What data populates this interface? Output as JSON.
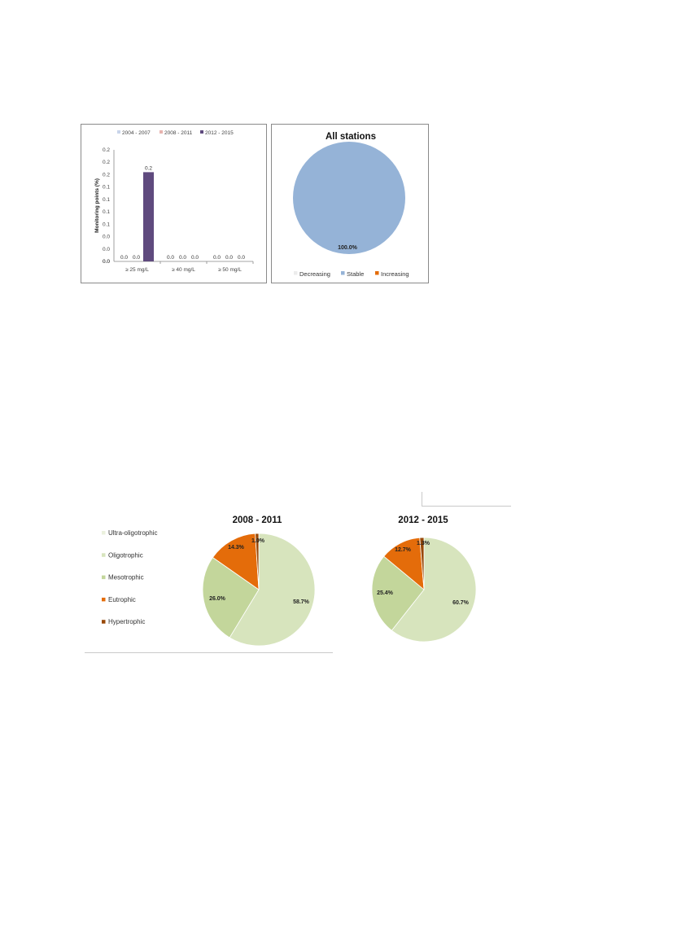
{
  "colors": {
    "series_2004_2007": "#c9d5ea",
    "series_2008_2011": "#e7b4b0",
    "series_2012_2015": "#5f4a7e",
    "decreasing": "#ececec",
    "stable": "#95b3d7",
    "increasing": "#e46c0a",
    "ultra_oligotrophic": "#ebf1de",
    "oligotrophic": "#d7e4bd",
    "mesotrophic": "#c3d69b",
    "eutrophic": "#e46c0a",
    "hypertrophic": "#984807"
  },
  "chart_data": [
    {
      "type": "bar",
      "title": "",
      "xlabel": "",
      "ylabel": "Monitoring points (%)",
      "ylim": [
        0,
        0.25
      ],
      "ytick_labels": [
        "0.2",
        "0.2",
        "0.2",
        "0.1",
        "0.1",
        "0.1",
        "0.1",
        "0.0",
        "0.0",
        "0.0"
      ],
      "categories": [
        "≥ 25 mg/L",
        "≥ 40 mg/L",
        "≥ 50 mg/L"
      ],
      "series": [
        {
          "name": "2004 - 2007",
          "values": [
            0.0,
            0.0,
            0.0
          ],
          "labels": [
            "0.0",
            "0.0",
            "0.0"
          ],
          "color_key": "series_2004_2007"
        },
        {
          "name": "2008 - 2011",
          "values": [
            0.0,
            0.0,
            0.0
          ],
          "labels": [
            "0.0",
            "0.0",
            "0.0"
          ],
          "color_key": "series_2008_2011"
        },
        {
          "name": "2012 - 2015",
          "values": [
            0.2,
            0.0,
            0.0
          ],
          "labels": [
            "0.2",
            "0.0",
            "0.0"
          ],
          "color_key": "series_2012_2015"
        }
      ],
      "legend": "top",
      "grid": false
    },
    {
      "type": "pie",
      "title": "All stations",
      "slices": [
        {
          "name": "Decreasing",
          "value": 0.0,
          "color_key": "decreasing",
          "label": ""
        },
        {
          "name": "Stable",
          "value": 100.0,
          "color_key": "stable",
          "label": "100.0%"
        },
        {
          "name": "Increasing",
          "value": 0.0,
          "color_key": "increasing",
          "label": ""
        }
      ],
      "legend": "bottom"
    },
    {
      "type": "pie",
      "title": "2008 - 2011",
      "slices": [
        {
          "name": "Ultra-oligotrophic",
          "value": 0.0,
          "color_key": "ultra_oligotrophic",
          "label": ""
        },
        {
          "name": "Oligotrophic",
          "value": 58.7,
          "color_key": "oligotrophic",
          "label": "58.7%"
        },
        {
          "name": "Mesotrophic",
          "value": 26.0,
          "color_key": "mesotrophic",
          "label": "26.0%"
        },
        {
          "name": "Eutrophic",
          "value": 14.3,
          "color_key": "eutrophic",
          "label": "14.3%"
        },
        {
          "name": "Hypertrophic",
          "value": 1.0,
          "color_key": "hypertrophic",
          "label": "1.0%"
        }
      ],
      "legend": "left"
    },
    {
      "type": "pie",
      "title": "2012 - 2015",
      "slices": [
        {
          "name": "Ultra-oligotrophic",
          "value": 0.0,
          "color_key": "ultra_oligotrophic",
          "label": ""
        },
        {
          "name": "Oligotrophic",
          "value": 60.7,
          "color_key": "oligotrophic",
          "label": "60.7%"
        },
        {
          "name": "Mesotrophic",
          "value": 25.4,
          "color_key": "mesotrophic",
          "label": "25.4%"
        },
        {
          "name": "Eutrophic",
          "value": 12.7,
          "color_key": "eutrophic",
          "label": "12.7%"
        },
        {
          "name": "Hypertrophic",
          "value": 1.3,
          "color_key": "hypertrophic",
          "label": "1.3%"
        }
      ],
      "legend": "none"
    }
  ],
  "trophic_legend": [
    "Ultra-oligotrophic",
    "Oligotrophic",
    "Mesotrophic",
    "Eutrophic",
    "Hypertrophic"
  ]
}
